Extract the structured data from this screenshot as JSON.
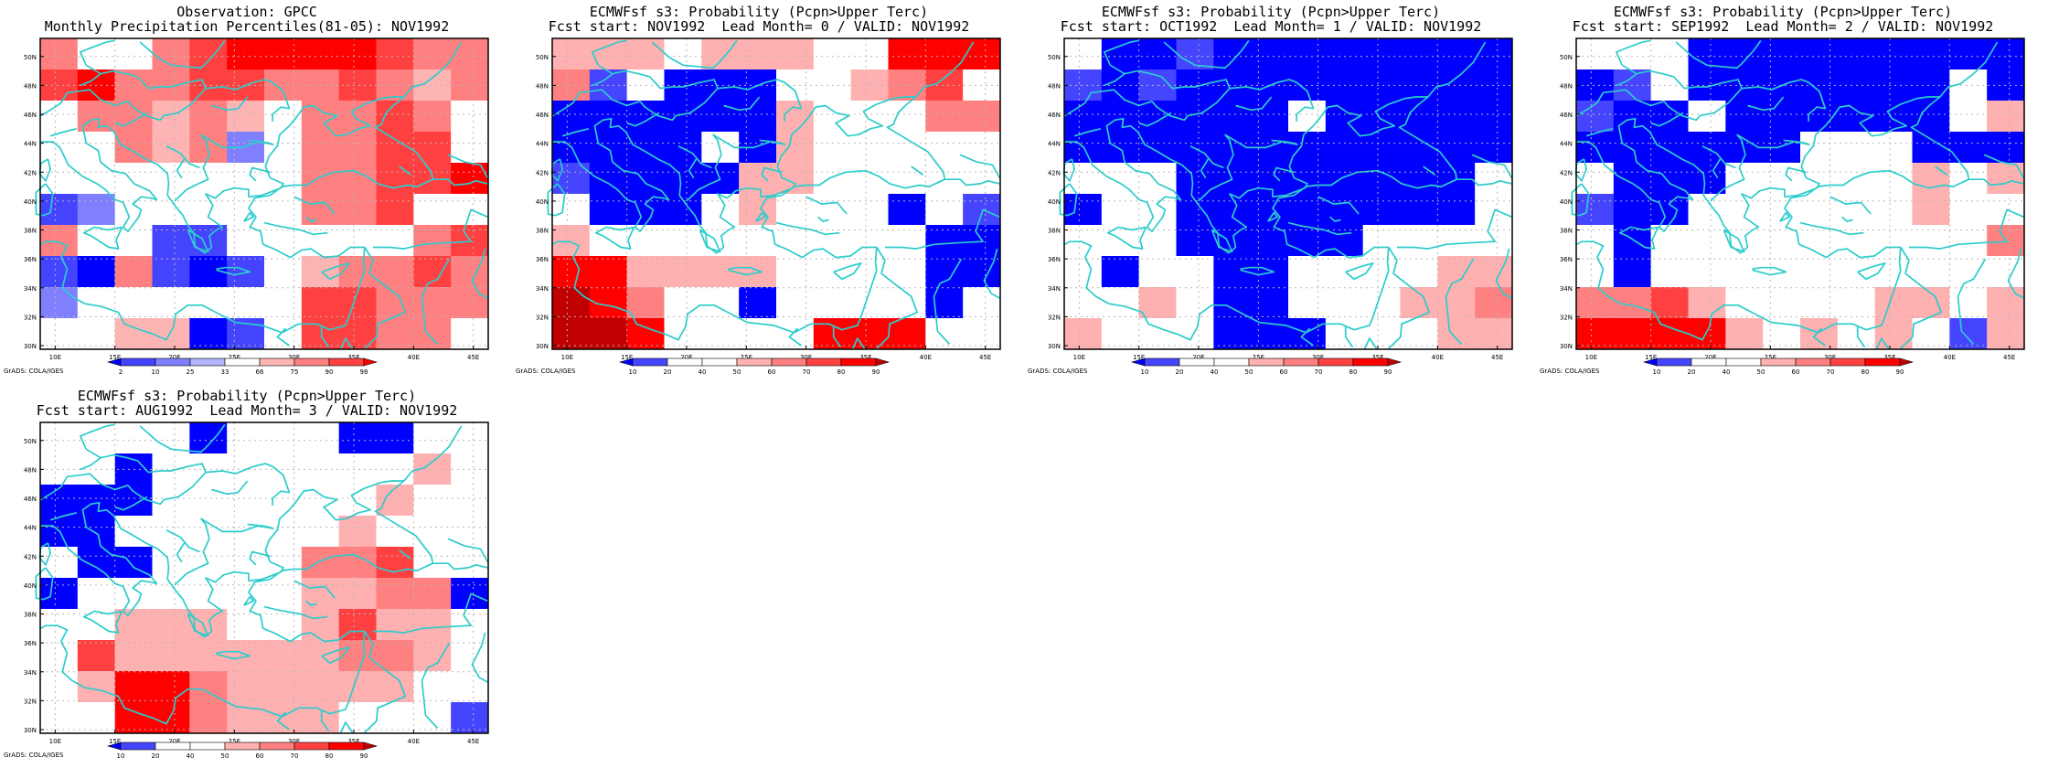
{
  "credit": "GrADS: COLA/IGES",
  "grid": {
    "cols": 12,
    "rows": 10
  },
  "lon_ticks": [
    "10E",
    "15E",
    "20E",
    "25E",
    "30E",
    "35E",
    "40E",
    "45E"
  ],
  "lat_ticks": [
    "30N",
    "32N",
    "34N",
    "36N",
    "38N",
    "40N",
    "42N",
    "44N",
    "46N",
    "48N",
    "50N"
  ],
  "palettes": {
    "obs": {
      "labels": [
        "2",
        "10",
        "25",
        "33",
        "66",
        "75",
        "90",
        "98"
      ],
      "colors": [
        "#0000ff",
        "#4444ff",
        "#8080ff",
        "#b4b4ff",
        "#ffffff",
        "#ffb4b4",
        "#ff8080",
        "#ff4040",
        "#ff0000"
      ]
    },
    "prob": {
      "labels": [
        "10",
        "20",
        "40",
        "50",
        "60",
        "70",
        "80",
        "90"
      ],
      "colors": [
        "#0000ff",
        "#4545ff",
        "#ffffff",
        "#ffffff",
        "#ffb0b0",
        "#ff8080",
        "#ff4040",
        "#ff0000",
        "#c00000"
      ]
    }
  },
  "colors": {
    "coast": "#2ccccc",
    "grid": "#b8b8b8",
    "frame": "#000000"
  },
  "panels": [
    {
      "title1": "Observation: GPCC",
      "title2": "Monthly Precipitation Percentiles(81-05): NOV1992",
      "palette": "obs",
      "cells": [
        [
          6,
          4,
          4,
          6,
          7,
          8,
          8,
          8,
          8,
          7,
          6,
          6
        ],
        [
          7,
          8,
          6,
          6,
          7,
          7,
          6,
          6,
          7,
          6,
          5,
          6
        ],
        [
          4,
          6,
          6,
          5,
          6,
          5,
          4,
          6,
          6,
          7,
          6,
          4
        ],
        [
          4,
          4,
          6,
          5,
          6,
          2,
          4,
          6,
          6,
          7,
          7,
          4
        ],
        [
          4,
          4,
          4,
          4,
          4,
          4,
          4,
          6,
          6,
          7,
          7,
          8
        ],
        [
          1,
          2,
          4,
          4,
          4,
          4,
          4,
          6,
          6,
          7,
          4,
          4
        ],
        [
          6,
          4,
          4,
          1,
          1,
          4,
          4,
          4,
          4,
          4,
          6,
          7
        ],
        [
          1,
          0,
          6,
          1,
          0,
          1,
          4,
          5,
          6,
          6,
          7,
          6
        ],
        [
          2,
          4,
          4,
          4,
          4,
          4,
          4,
          7,
          7,
          6,
          6,
          6
        ],
        [
          4,
          4,
          5,
          5,
          0,
          1,
          4,
          7,
          7,
          6,
          6,
          4
        ]
      ]
    },
    {
      "title1": "ECMWFsf s3: Probability (Pcpn>Upper Terc)",
      "title2": "Fcst start: NOV1992  Lead Month= 0 / VALID: NOV1992",
      "palette": "prob",
      "cells": [
        [
          4,
          4,
          4,
          2,
          4,
          4,
          4,
          2,
          2,
          7,
          7,
          7
        ],
        [
          5,
          1,
          2,
          0,
          0,
          0,
          2,
          2,
          4,
          5,
          6,
          2
        ],
        [
          0,
          0,
          0,
          0,
          0,
          0,
          4,
          2,
          2,
          2,
          5,
          5
        ],
        [
          0,
          0,
          0,
          0,
          2,
          0,
          4,
          2,
          2,
          2,
          2,
          2
        ],
        [
          1,
          0,
          0,
          0,
          0,
          4,
          4,
          2,
          2,
          2,
          2,
          2
        ],
        [
          2,
          0,
          0,
          0,
          2,
          4,
          2,
          2,
          2,
          0,
          2,
          1
        ],
        [
          4,
          2,
          2,
          2,
          2,
          2,
          2,
          2,
          2,
          2,
          0,
          0
        ],
        [
          7,
          7,
          4,
          4,
          4,
          4,
          2,
          2,
          2,
          2,
          0,
          0
        ],
        [
          8,
          7,
          5,
          2,
          2,
          0,
          2,
          2,
          2,
          2,
          0,
          2
        ],
        [
          8,
          8,
          7,
          2,
          2,
          2,
          2,
          7,
          7,
          7,
          2,
          2
        ]
      ]
    },
    {
      "title1": "ECMWFsf s3: Probability (Pcpn>Upper Terc)",
      "title2": "Fcst start: OCT1992  Lead Month= 1 / VALID: NOV1992",
      "palette": "prob",
      "cells": [
        [
          2,
          0,
          0,
          1,
          0,
          0,
          0,
          0,
          0,
          0,
          0,
          0
        ],
        [
          1,
          0,
          1,
          0,
          0,
          0,
          0,
          0,
          0,
          0,
          0,
          0
        ],
        [
          0,
          0,
          0,
          0,
          0,
          0,
          2,
          0,
          0,
          0,
          0,
          0
        ],
        [
          0,
          0,
          0,
          0,
          0,
          0,
          0,
          0,
          0,
          0,
          0,
          0
        ],
        [
          2,
          2,
          2,
          0,
          0,
          0,
          0,
          0,
          0,
          0,
          0,
          2
        ],
        [
          0,
          2,
          2,
          0,
          0,
          0,
          0,
          0,
          0,
          0,
          0,
          2
        ],
        [
          2,
          2,
          2,
          0,
          0,
          0,
          0,
          0,
          2,
          2,
          2,
          2
        ],
        [
          2,
          0,
          2,
          2,
          0,
          0,
          2,
          2,
          2,
          2,
          4,
          4
        ],
        [
          2,
          2,
          4,
          2,
          0,
          0,
          2,
          2,
          2,
          4,
          4,
          5
        ],
        [
          4,
          2,
          2,
          2,
          0,
          0,
          0,
          2,
          2,
          2,
          4,
          4
        ]
      ]
    },
    {
      "title1": "ECMWFsf s3: Probability (Pcpn>Upper Terc)",
      "title2": "Fcst start: SEP1992  Lead Month= 2 / VALID: NOV1992",
      "palette": "prob",
      "cells": [
        [
          2,
          2,
          2,
          0,
          0,
          0,
          0,
          0,
          0,
          0,
          0,
          0
        ],
        [
          0,
          1,
          2,
          0,
          0,
          0,
          0,
          0,
          0,
          0,
          2,
          0
        ],
        [
          1,
          0,
          0,
          2,
          0,
          0,
          0,
          0,
          0,
          0,
          2,
          4
        ],
        [
          0,
          0,
          0,
          0,
          0,
          0,
          2,
          2,
          2,
          0,
          0,
          0
        ],
        [
          2,
          0,
          0,
          0,
          2,
          2,
          2,
          2,
          2,
          4,
          2,
          4
        ],
        [
          1,
          0,
          0,
          2,
          2,
          2,
          2,
          2,
          2,
          4,
          2,
          2
        ],
        [
          2,
          0,
          2,
          2,
          2,
          2,
          2,
          2,
          2,
          2,
          2,
          5
        ],
        [
          2,
          0,
          2,
          2,
          2,
          2,
          2,
          2,
          2,
          2,
          2,
          2
        ],
        [
          5,
          5,
          6,
          4,
          2,
          2,
          2,
          2,
          4,
          4,
          2,
          4
        ],
        [
          7,
          7,
          7,
          7,
          4,
          2,
          4,
          2,
          4,
          2,
          1,
          4
        ]
      ]
    },
    {
      "title1": "ECMWFsf s3: Probability (Pcpn>Upper Terc)",
      "title2": "Fcst start: AUG1992  Lead Month= 3 / VALID: NOV1992",
      "palette": "prob",
      "cells": [
        [
          2,
          2,
          2,
          2,
          0,
          2,
          2,
          2,
          0,
          0,
          2,
          2
        ],
        [
          2,
          2,
          0,
          2,
          2,
          2,
          2,
          2,
          2,
          2,
          4,
          2
        ],
        [
          0,
          0,
          0,
          2,
          2,
          2,
          2,
          2,
          2,
          4,
          2,
          2
        ],
        [
          0,
          0,
          2,
          2,
          2,
          2,
          2,
          2,
          4,
          2,
          2,
          2
        ],
        [
          2,
          0,
          0,
          2,
          2,
          2,
          2,
          5,
          5,
          6,
          2,
          2
        ],
        [
          0,
          2,
          2,
          2,
          2,
          2,
          2,
          4,
          4,
          5,
          5,
          0
        ],
        [
          2,
          2,
          4,
          4,
          4,
          2,
          2,
          4,
          6,
          4,
          4,
          2
        ],
        [
          2,
          6,
          4,
          4,
          4,
          4,
          4,
          4,
          5,
          5,
          4,
          2
        ],
        [
          2,
          4,
          7,
          7,
          5,
          4,
          4,
          4,
          4,
          4,
          2,
          2
        ],
        [
          2,
          2,
          7,
          7,
          5,
          4,
          4,
          4,
          2,
          2,
          2,
          1
        ]
      ]
    }
  ]
}
